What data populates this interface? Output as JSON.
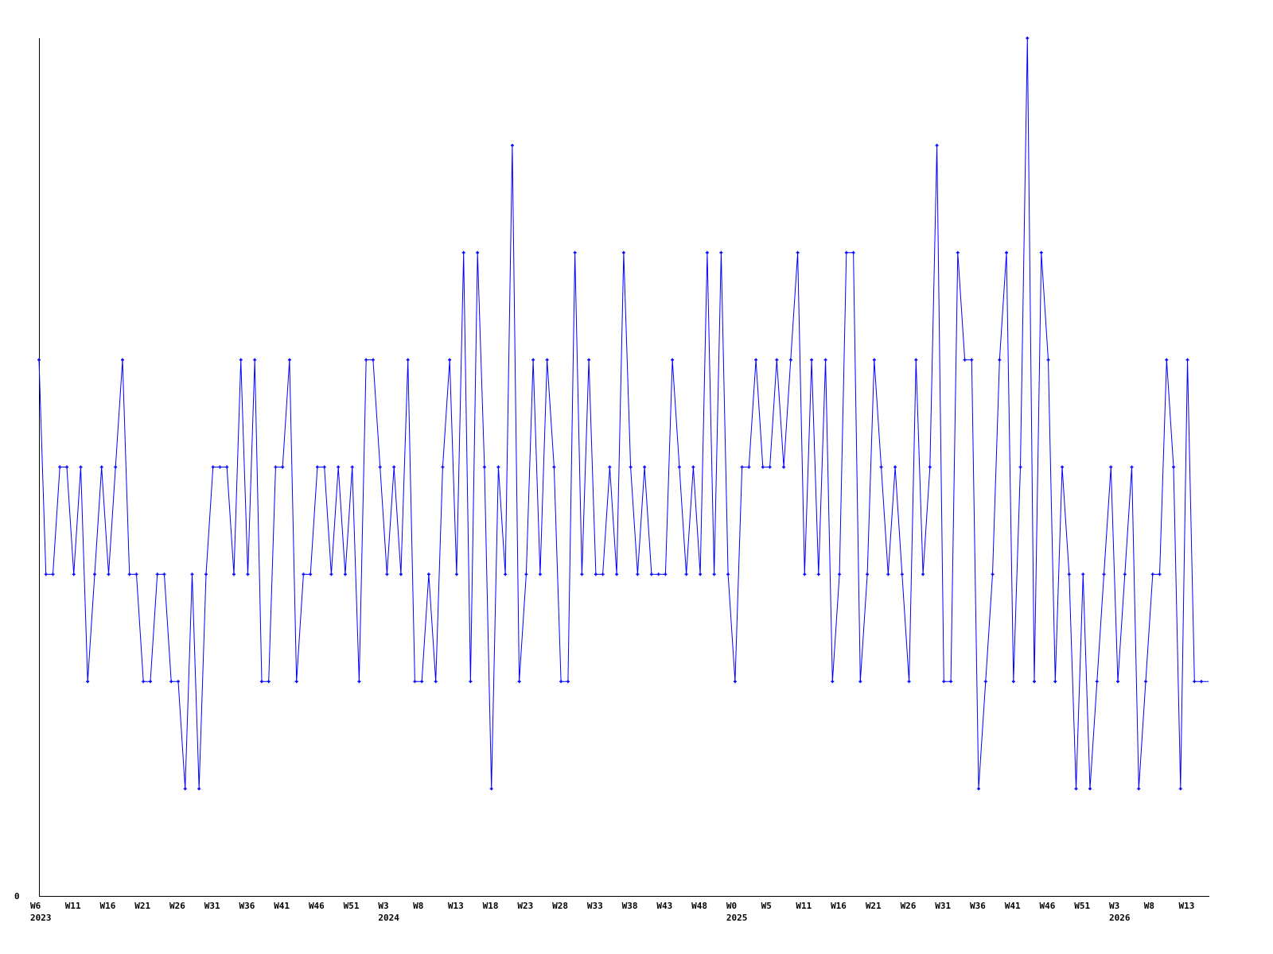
{
  "chart_data": {
    "type": "line",
    "title": "",
    "xlabel": "",
    "ylabel": "",
    "ylim": [
      0,
      8
    ],
    "y_tick_labels": [
      "0"
    ],
    "grid": false,
    "legend": "none",
    "line_color": "#0000ff",
    "marker": "plus",
    "x_tick_labels": [
      "W6",
      "W11",
      "W16",
      "W21",
      "W26",
      "W31",
      "W36",
      "W41",
      "W46",
      "W51",
      "W3",
      "W8",
      "W13",
      "W18",
      "W23",
      "W28",
      "W33",
      "W38",
      "W43",
      "W48",
      "W0",
      "W5",
      "W11",
      "W16",
      "W21",
      "W26",
      "W31",
      "W36",
      "W41",
      "W46",
      "W51",
      "W3",
      "W8",
      "W13"
    ],
    "x_tick_every_points": 5,
    "year_labels": [
      {
        "label": "2023",
        "tick": 0
      },
      {
        "label": "2024",
        "tick": 10
      },
      {
        "label": "2025",
        "tick": 20
      },
      {
        "label": "2026",
        "tick": 31
      }
    ],
    "values": [
      5,
      3,
      3,
      4,
      4,
      3,
      4,
      2,
      3,
      4,
      3,
      4,
      5,
      3,
      3,
      2,
      2,
      3,
      3,
      2,
      2,
      1,
      3,
      1,
      3,
      4,
      4,
      4,
      3,
      5,
      3,
      5,
      2,
      2,
      4,
      4,
      5,
      2,
      3,
      3,
      4,
      4,
      3,
      4,
      3,
      4,
      2,
      5,
      5,
      4,
      3,
      4,
      3,
      5,
      2,
      2,
      3,
      2,
      4,
      5,
      3,
      6,
      2,
      6,
      4,
      1,
      4,
      3,
      7,
      2,
      3,
      5,
      3,
      5,
      4,
      2,
      2,
      6,
      3,
      5,
      3,
      3,
      4,
      3,
      6,
      4,
      3,
      4,
      3,
      3,
      3,
      5,
      4,
      3,
      4,
      3,
      6,
      3,
      6,
      3,
      2,
      4,
      4,
      5,
      4,
      4,
      5,
      4,
      5,
      6,
      3,
      5,
      3,
      5,
      2,
      3,
      6,
      6,
      2,
      3,
      5,
      4,
      3,
      4,
      3,
      2,
      5,
      3,
      4,
      7,
      2,
      2,
      6,
      5,
      5,
      1,
      2,
      3,
      5,
      6,
      2,
      4,
      8,
      2,
      6,
      5,
      2,
      4,
      3,
      1,
      3,
      1,
      2,
      3,
      4,
      2,
      3,
      4,
      1,
      2,
      3,
      3,
      5,
      4,
      1,
      5,
      2,
      2
    ]
  }
}
